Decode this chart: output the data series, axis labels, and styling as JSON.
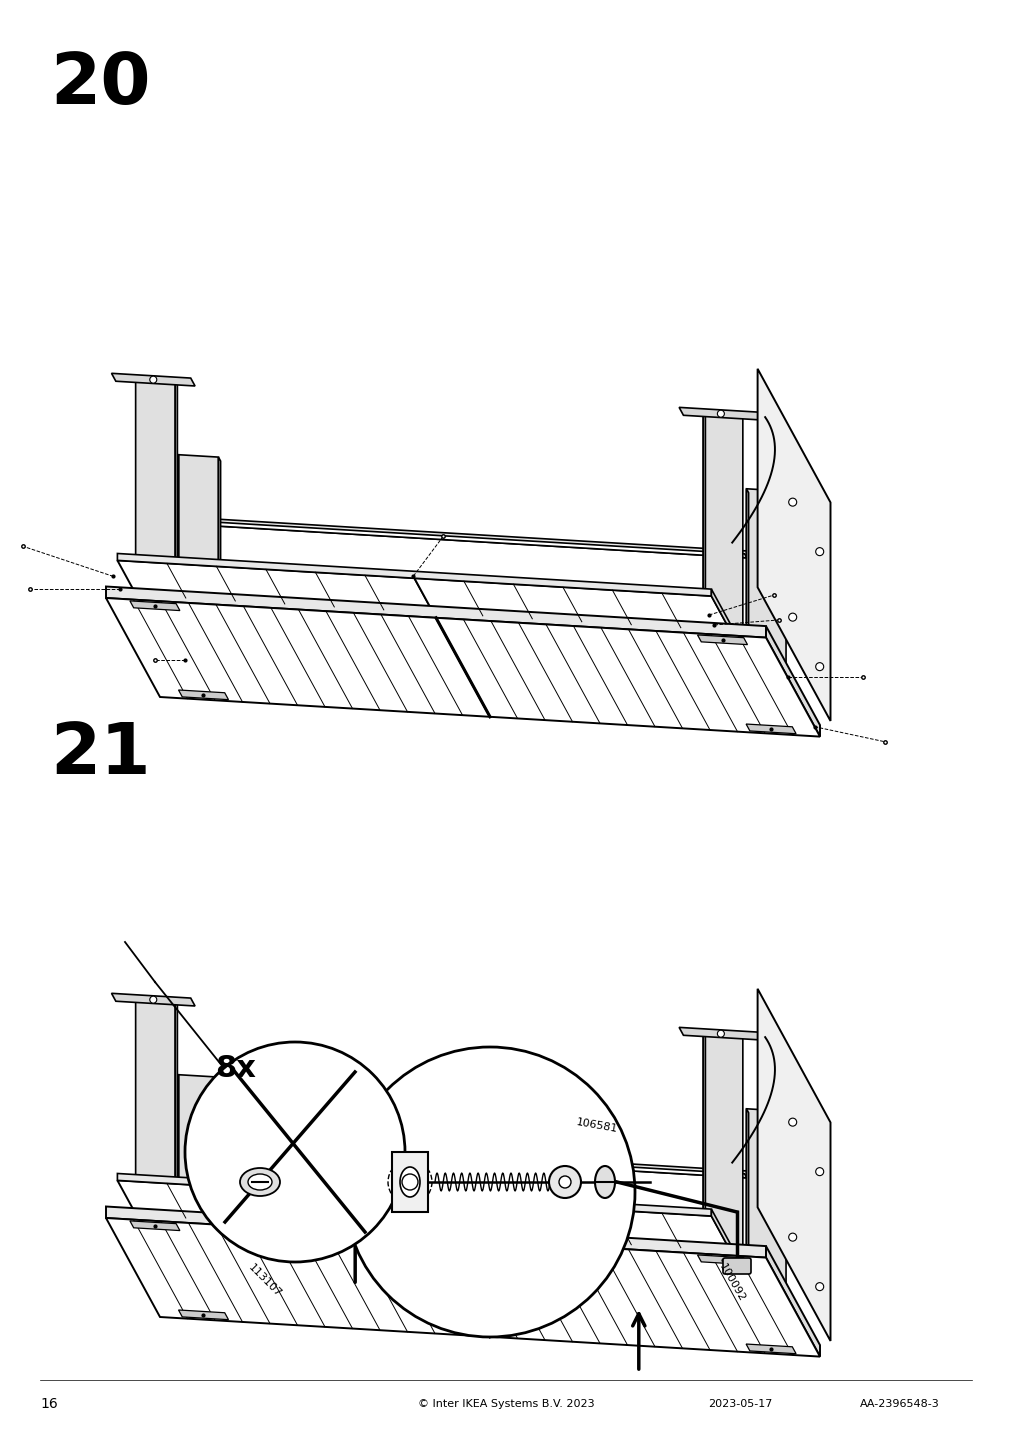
{
  "page_number": "16",
  "step_numbers": [
    "20",
    "21"
  ],
  "step_number_fontsize": 52,
  "footer_text": "© Inter IKEA Systems B.V. 2023",
  "footer_date": "2023-05-17",
  "footer_code": "AA-2396548-3",
  "background_color": "#ffffff",
  "line_color": "#000000",
  "count_label": "8x",
  "part_numbers": [
    "113107",
    "106581",
    "100092"
  ]
}
